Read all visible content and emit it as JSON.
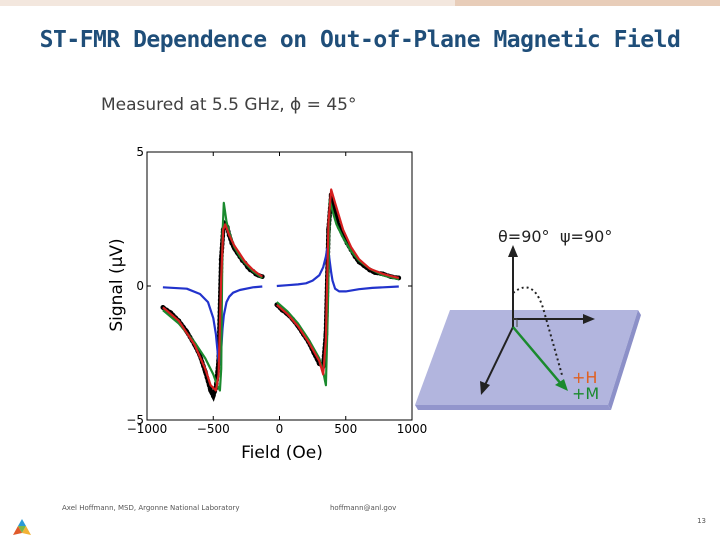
{
  "slide": {
    "title": "ST-FMR Dependence on Out-of-Plane Magnetic Field",
    "subtitle": "Measured at 5.5 GHz, ϕ = 45°",
    "footer_author": "Axel Hoffmann, MSD, Argonne National Laboratory",
    "footer_email": "hoffmann@anl.gov",
    "page_number": "13"
  },
  "chart_data": {
    "type": "line",
    "xlabel": "Field (Oe)",
    "ylabel": "Signal (μV)",
    "xlim": [
      -1000,
      1000
    ],
    "ylim": [
      -5,
      5
    ],
    "xticks": [
      "−1000",
      "−500",
      "0",
      "500",
      "1000"
    ],
    "yticks": [
      "5",
      "0",
      "−5"
    ],
    "grid": false,
    "series": [
      {
        "role": "measured",
        "color": "#000000",
        "x": [
          -880,
          -820,
          -760,
          -700,
          -640,
          -600,
          -560,
          -520,
          -500,
          -480,
          -460,
          -440,
          -425,
          -410,
          -395,
          -380,
          -360,
          -340,
          -320,
          -300,
          -280,
          -260,
          -240,
          -220,
          -200,
          -180,
          -160,
          -130,
          -20,
          20,
          60,
          100,
          140,
          180,
          220,
          260,
          300,
          330,
          350,
          370,
          390,
          410,
          430,
          450,
          480,
          510,
          540,
          570,
          600,
          640,
          680,
          720,
          780,
          840,
          900
        ],
        "y": [
          -0.8,
          -1.0,
          -1.3,
          -1.7,
          -2.2,
          -2.6,
          -3.2,
          -3.9,
          -4.1,
          -3.8,
          -2.8,
          1.0,
          2.1,
          2.3,
          2.2,
          1.9,
          1.6,
          1.4,
          1.25,
          1.1,
          0.95,
          0.85,
          0.7,
          0.6,
          0.55,
          0.45,
          0.4,
          0.35,
          -0.7,
          -0.9,
          -1.05,
          -1.25,
          -1.5,
          -1.8,
          -2.1,
          -2.5,
          -2.9,
          -3.0,
          -1.8,
          2.1,
          3.4,
          3.0,
          2.5,
          2.2,
          1.9,
          1.6,
          1.35,
          1.1,
          0.9,
          0.75,
          0.6,
          0.5,
          0.45,
          0.35,
          0.3
        ]
      },
      {
        "role": "fit",
        "color": "#d62020",
        "x": [
          -880,
          -760,
          -640,
          -560,
          -520,
          -480,
          -460,
          -440,
          -425,
          -410,
          -380,
          -340,
          -300,
          -260,
          -200,
          -160,
          -130,
          -20,
          60,
          140,
          220,
          300,
          330,
          350,
          370,
          390,
          420,
          480,
          540,
          600,
          680,
          780,
          900
        ],
        "y": [
          -0.8,
          -1.3,
          -2.2,
          -3.1,
          -3.7,
          -3.9,
          -3.3,
          0.3,
          2.1,
          2.3,
          1.9,
          1.5,
          1.2,
          0.9,
          0.6,
          0.45,
          0.35,
          -0.7,
          -1.05,
          -1.5,
          -2.1,
          -2.8,
          -3.3,
          -2.0,
          2.4,
          3.6,
          3.1,
          2.1,
          1.45,
          1.0,
          0.65,
          0.45,
          0.3
        ]
      },
      {
        "role": "fit component",
        "color": "#1a8a2e",
        "x": [
          -880,
          -760,
          -640,
          -560,
          -500,
          -470,
          -450,
          -440,
          -430,
          -420,
          -400,
          -380,
          -340,
          -300,
          -260,
          -200,
          -130,
          -20,
          60,
          140,
          220,
          300,
          330,
          350,
          365,
          380,
          400,
          430,
          480,
          540,
          600,
          680,
          780,
          900
        ],
        "y": [
          -0.9,
          -1.4,
          -2.1,
          -2.7,
          -3.3,
          -3.7,
          -3.9,
          -3.1,
          1.9,
          3.1,
          2.4,
          2.0,
          1.45,
          1.1,
          0.85,
          0.55,
          0.3,
          -0.6,
          -0.95,
          -1.4,
          -2.0,
          -2.7,
          -3.2,
          -3.7,
          -0.8,
          3.2,
          2.8,
          2.3,
          1.8,
          1.3,
          0.95,
          0.65,
          0.4,
          0.25
        ]
      },
      {
        "role": "fit component",
        "color": "#2233cc",
        "x": [
          -880,
          -700,
          -600,
          -540,
          -500,
          -480,
          -470,
          -460,
          -450,
          -440,
          -430,
          -420,
          -400,
          -380,
          -350,
          -300,
          -200,
          -130,
          -20,
          60,
          140,
          200,
          250,
          300,
          330,
          350,
          360,
          370,
          380,
          390,
          400,
          420,
          450,
          500,
          600,
          700,
          900
        ],
        "y": [
          -0.05,
          -0.1,
          -0.3,
          -0.6,
          -1.2,
          -1.8,
          -2.3,
          -2.8,
          -2.9,
          -2.4,
          -1.6,
          -1.1,
          -0.6,
          -0.4,
          -0.25,
          -0.15,
          -0.05,
          -0.02,
          0.0,
          0.03,
          0.06,
          0.1,
          0.2,
          0.4,
          0.7,
          1.1,
          1.4,
          1.3,
          0.9,
          0.5,
          0.2,
          -0.1,
          -0.2,
          -0.2,
          -0.12,
          -0.07,
          -0.02
        ]
      }
    ]
  },
  "diagram": {
    "theta_label": "θ=90°",
    "psi_label": "ψ=90°",
    "h_label": "+H",
    "m_label": "+M",
    "h_color": "#e06020",
    "m_color": "#1a8a2e",
    "plane_color": "#a5a8d8"
  },
  "colors": {
    "title": "#1f4e79",
    "topbar": "#f3e7de"
  }
}
